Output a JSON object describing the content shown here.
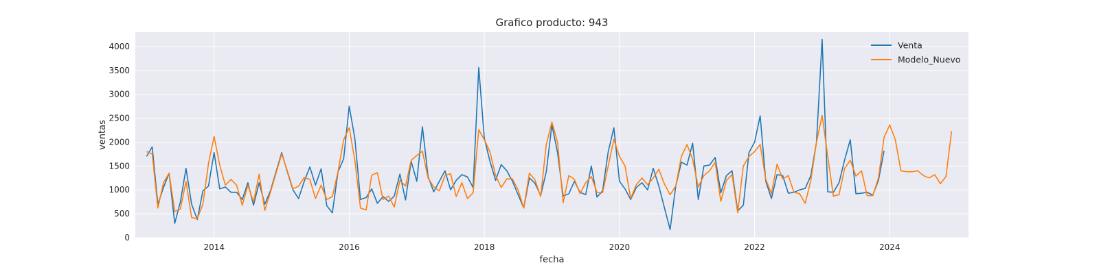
{
  "chart_data": {
    "type": "line",
    "title": "Grafico producto: 943",
    "xlabel": "fecha",
    "ylabel": "ventas",
    "x_range": [
      "2012-11-01",
      "2025-03-01"
    ],
    "ylim": [
      0,
      4300
    ],
    "x_ticks": [
      {
        "date": "2014-01-01",
        "label": "2014"
      },
      {
        "date": "2016-01-01",
        "label": "2016"
      },
      {
        "date": "2018-01-01",
        "label": "2018"
      },
      {
        "date": "2020-01-01",
        "label": "2020"
      },
      {
        "date": "2022-01-01",
        "label": "2022"
      },
      {
        "date": "2024-01-01",
        "label": "2024"
      }
    ],
    "y_ticks": [
      0,
      500,
      1000,
      1500,
      2000,
      2500,
      3000,
      3500,
      4000
    ],
    "grid": true,
    "legend": "top-right",
    "background": "#eaeaf2",
    "series": [
      {
        "name": "Venta",
        "color": "#1f77b4",
        "start": "2013-01",
        "values": [
          1700,
          1900,
          700,
          1050,
          1350,
          300,
          750,
          1450,
          700,
          380,
          980,
          1080,
          1780,
          1020,
          1060,
          950,
          950,
          800,
          1150,
          680,
          1150,
          700,
          980,
          1380,
          1780,
          1380,
          1000,
          820,
          1180,
          1480,
          1100,
          1440,
          670,
          520,
          1380,
          1650,
          2750,
          2080,
          800,
          840,
          1020,
          720,
          860,
          760,
          870,
          1330,
          790,
          1600,
          1180,
          2320,
          1280,
          960,
          1180,
          1400,
          1000,
          1200,
          1320,
          1270,
          1050,
          3560,
          2080,
          1600,
          1200,
          1530,
          1400,
          1180,
          900,
          620,
          1250,
          1140,
          880,
          1380,
          2360,
          1780,
          870,
          920,
          1180,
          950,
          900,
          1500,
          850,
          980,
          1800,
          2300,
          1180,
          1020,
          800,
          1050,
          1150,
          1000,
          1450,
          1080,
          620,
          170,
          1080,
          1580,
          1520,
          1980,
          800,
          1500,
          1520,
          1680,
          940,
          1300,
          1400,
          560,
          680,
          1780,
          2000,
          2550,
          1180,
          820,
          1320,
          1300,
          930,
          950,
          1000,
          1030,
          1300,
          2000,
          4150,
          960,
          950,
          1150,
          1630,
          2050,
          920,
          930,
          950,
          890,
          1200,
          1820
        ]
      },
      {
        "name": "Modelo_Nuevo",
        "color": "#ff7f0e",
        "start": "2013-01",
        "values": [
          1800,
          1750,
          620,
          1150,
          1350,
          550,
          600,
          1180,
          420,
          400,
          700,
          1550,
          2120,
          1520,
          1100,
          1220,
          1100,
          680,
          1100,
          750,
          1330,
          570,
          950,
          1350,
          1750,
          1400,
          1020,
          1080,
          1260,
          1220,
          820,
          1100,
          800,
          860,
          1380,
          2050,
          2300,
          1620,
          620,
          580,
          1310,
          1360,
          800,
          870,
          640,
          1200,
          1080,
          1620,
          1720,
          1810,
          1250,
          1060,
          980,
          1300,
          1340,
          860,
          1150,
          820,
          940,
          2260,
          2050,
          1800,
          1300,
          1050,
          1230,
          1230,
          1000,
          620,
          1350,
          1210,
          860,
          1950,
          2420,
          2000,
          730,
          1300,
          1220,
          920,
          1150,
          1280,
          950,
          940,
          1500,
          2060,
          1700,
          1500,
          820,
          1110,
          1250,
          1110,
          1250,
          1430,
          1120,
          900,
          1080,
          1700,
          1950,
          1640,
          1060,
          1300,
          1400,
          1580,
          760,
          1200,
          1320,
          520,
          1500,
          1700,
          1800,
          1950,
          1220,
          920,
          1540,
          1230,
          1300,
          950,
          920,
          720,
          1200,
          2000,
          2560,
          1700,
          870,
          900,
          1450,
          1620,
          1290,
          1400,
          880,
          880,
          1250,
          2100,
          2360,
          2050,
          1400,
          1380,
          1380,
          1400,
          1300,
          1250,
          1320,
          1130,
          1280,
          2230
        ]
      }
    ]
  }
}
